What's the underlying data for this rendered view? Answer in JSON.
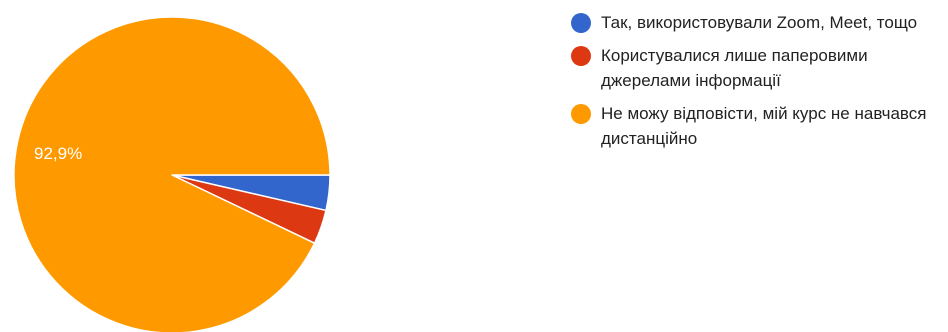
{
  "chart_data": {
    "type": "pie",
    "title": "",
    "slices": [
      {
        "label": "Так, використовували Zoom, Meet, тощо",
        "value": 3.6,
        "color": "#3366cc"
      },
      {
        "label": "Користувалися лише паперовими джерелами інформації",
        "value": 3.5,
        "color": "#dc3912"
      },
      {
        "label": "Не можу відповісти, мій курс не навчався дистанційно",
        "value": 92.9,
        "color": "#ff9900"
      }
    ],
    "data_labels": [
      "",
      "",
      "92,9%"
    ],
    "legend_position": "right"
  }
}
